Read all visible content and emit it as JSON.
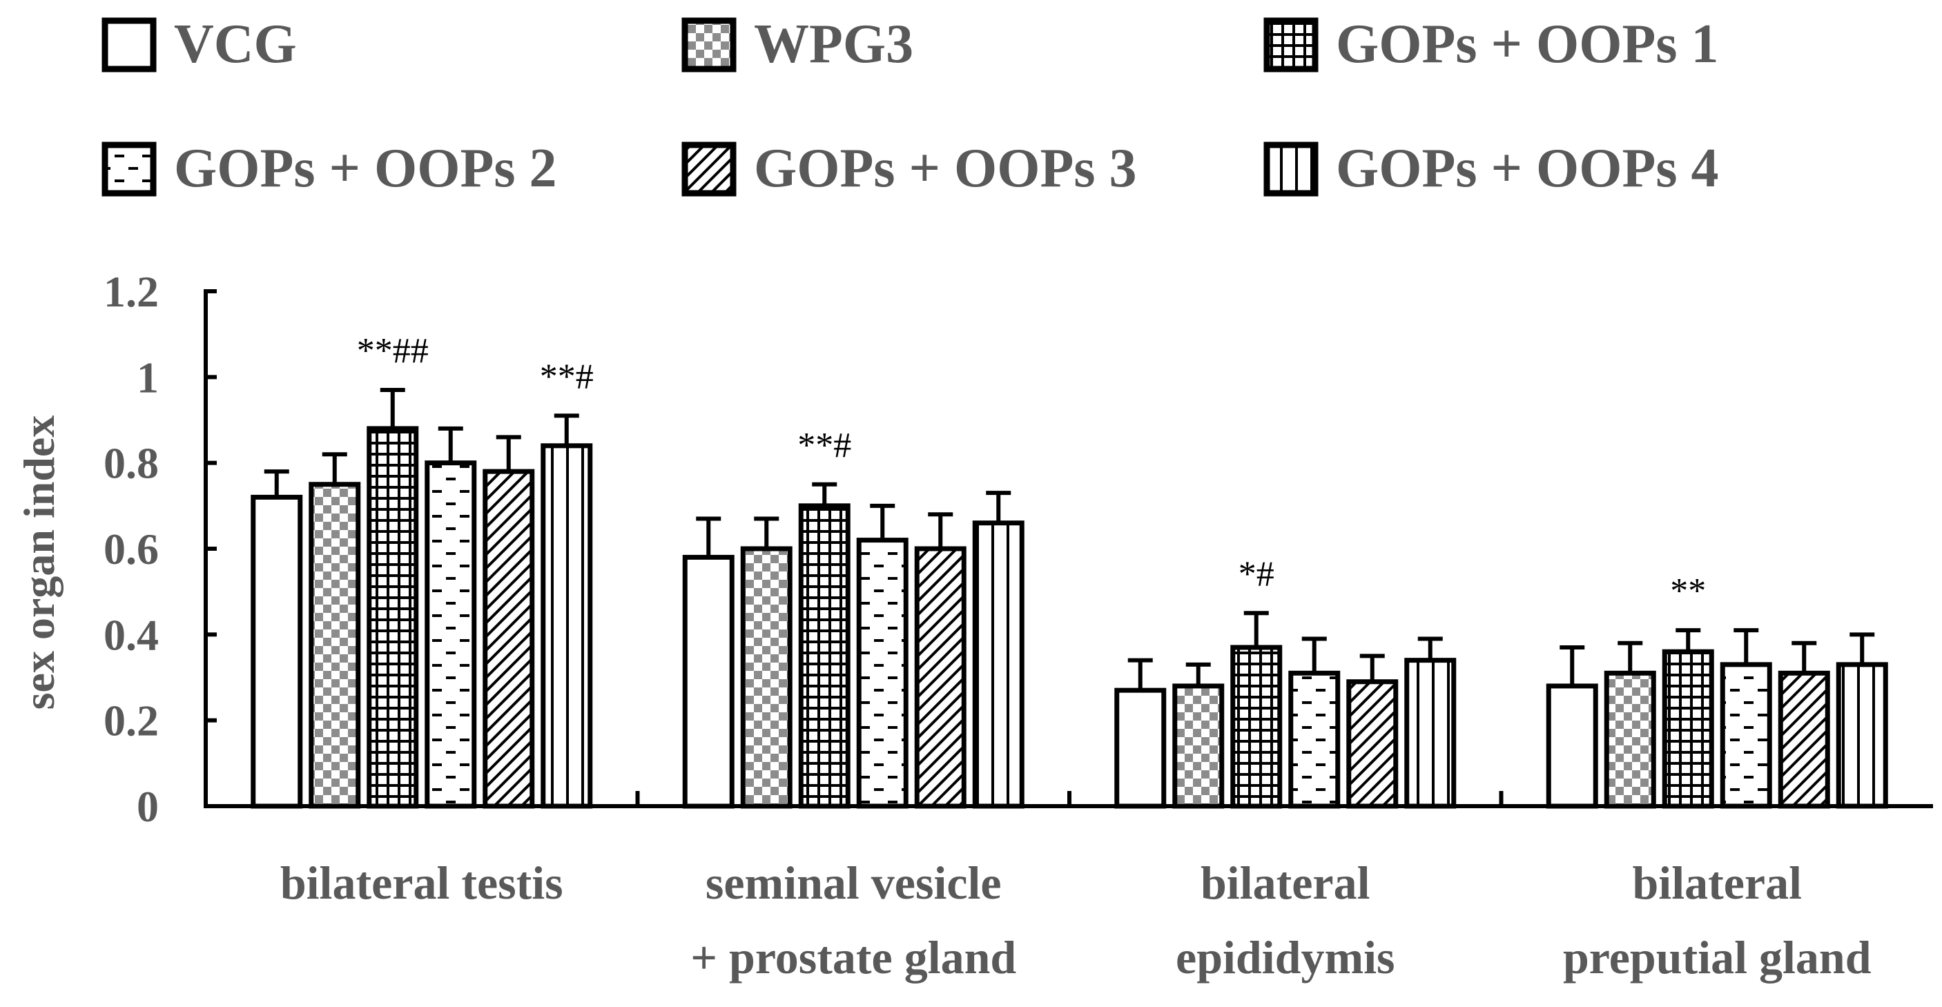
{
  "chart_data": {
    "type": "bar",
    "title": "",
    "xlabel": "",
    "ylabel": "sex organ index",
    "ylim": [
      0,
      1.2
    ],
    "yticks": [
      "0",
      "0.2",
      "0.4",
      "0.6",
      "0.8",
      "1",
      "1.2"
    ],
    "legend_position": "top",
    "categories": [
      [
        "bilateral testis"
      ],
      [
        "seminal vesicle",
        "+ prostate gland"
      ],
      [
        "bilateral",
        "epididymis"
      ],
      [
        "bilateral",
        "preputial gland"
      ]
    ],
    "series": [
      {
        "name": "VCG",
        "pattern": "solid",
        "values": [
          0.72,
          0.58,
          0.27,
          0.28
        ],
        "errors": [
          0.06,
          0.09,
          0.07,
          0.09
        ]
      },
      {
        "name": "WPG3",
        "pattern": "checker",
        "values": [
          0.75,
          0.6,
          0.28,
          0.31
        ],
        "errors": [
          0.07,
          0.07,
          0.05,
          0.07
        ]
      },
      {
        "name": "GOPs + OOPs 1",
        "pattern": "grid",
        "values": [
          0.88,
          0.7,
          0.37,
          0.36
        ],
        "errors": [
          0.09,
          0.05,
          0.08,
          0.05
        ]
      },
      {
        "name": "GOPs + OOPs 2",
        "pattern": "dashes",
        "values": [
          0.8,
          0.62,
          0.31,
          0.33
        ],
        "errors": [
          0.08,
          0.08,
          0.08,
          0.08
        ]
      },
      {
        "name": "GOPs + OOPs 3",
        "pattern": "diagonal",
        "values": [
          0.78,
          0.6,
          0.29,
          0.31
        ],
        "errors": [
          0.08,
          0.08,
          0.06,
          0.07
        ]
      },
      {
        "name": "GOPs + OOPs 4",
        "pattern": "vertical",
        "values": [
          0.84,
          0.66,
          0.34,
          0.33
        ],
        "errors": [
          0.07,
          0.07,
          0.05,
          0.07
        ]
      }
    ],
    "annotations": [
      {
        "text": "**##",
        "category": 0,
        "series": 2
      },
      {
        "text": "**#",
        "category": 0,
        "series": 5
      },
      {
        "text": "**#",
        "category": 1,
        "series": 2
      },
      {
        "text": "*#",
        "category": 2,
        "series": 2
      },
      {
        "text": "**",
        "category": 3,
        "series": 2
      }
    ]
  }
}
